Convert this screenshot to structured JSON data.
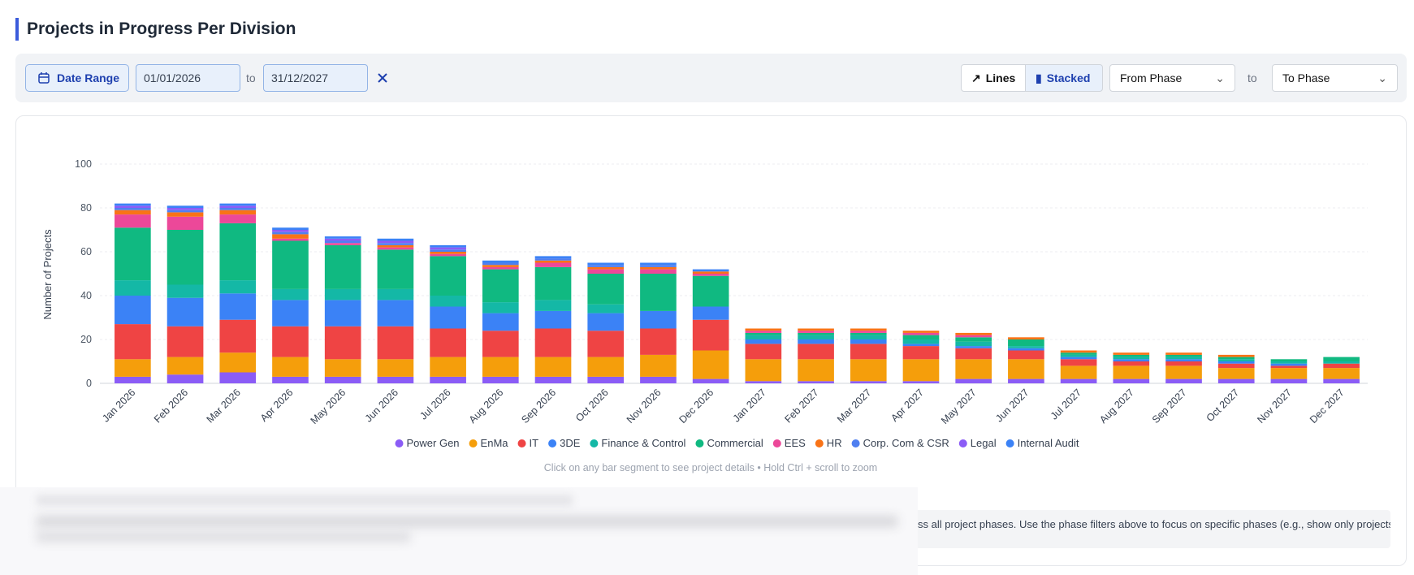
{
  "header": {
    "title": "Projects in Progress Per Division"
  },
  "toolbar": {
    "date_range_button": "Date Range",
    "start_date": "01/01/2026",
    "to_label": "to",
    "end_date": "31/12/2027",
    "view_lines": "Lines",
    "view_stacked": "Stacked",
    "from_phase": "From Phase",
    "phase_to_label": "to",
    "to_phase": "To Phase"
  },
  "chart_data": {
    "type": "bar",
    "stacked": true,
    "y_label": "Number of Projects",
    "categories": [
      "Jan 2026",
      "Feb 2026",
      "Mar 2026",
      "Apr 2026",
      "May 2026",
      "Jun 2026",
      "Jul 2026",
      "Aug 2026",
      "Sep 2026",
      "Oct 2026",
      "Nov 2026",
      "Dec 2026",
      "Jan 2027",
      "Feb 2027",
      "Mar 2027",
      "Apr 2027",
      "May 2027",
      "Jun 2027",
      "Jul 2027",
      "Aug 2027",
      "Sep 2027",
      "Oct 2027",
      "Nov 2027",
      "Dec 2027"
    ],
    "ylim": [
      0,
      100
    ],
    "yticks": [
      0,
      20,
      40,
      60,
      80,
      100
    ],
    "grid": true,
    "legend": "bottom",
    "series": [
      {
        "name": "Power Gen",
        "color": "#8b5cf6",
        "values": [
          3,
          4,
          5,
          3,
          3,
          3,
          3,
          3,
          3,
          3,
          3,
          2,
          1,
          1,
          1,
          1,
          2,
          2,
          2,
          2,
          2,
          2,
          2,
          2
        ]
      },
      {
        "name": "EnMa",
        "color": "#f59e0b",
        "values": [
          8,
          8,
          9,
          9,
          8,
          8,
          9,
          9,
          9,
          9,
          10,
          13,
          10,
          10,
          10,
          10,
          9,
          9,
          6,
          6,
          6,
          5,
          5,
          5
        ]
      },
      {
        "name": "IT",
        "color": "#ef4444",
        "values": [
          16,
          14,
          15,
          14,
          15,
          15,
          13,
          12,
          13,
          12,
          12,
          14,
          7,
          7,
          7,
          6,
          5,
          4,
          3,
          2,
          2,
          2,
          1,
          2
        ]
      },
      {
        "name": "3DE",
        "color": "#3b82f6",
        "values": [
          13,
          13,
          12,
          12,
          12,
          12,
          10,
          8,
          8,
          8,
          8,
          6,
          2,
          2,
          2,
          1,
          1,
          1,
          1,
          1,
          1,
          1,
          1,
          0
        ]
      },
      {
        "name": "Finance & Control",
        "color": "#14b8a6",
        "values": [
          7,
          6,
          6,
          5,
          5,
          5,
          5,
          5,
          5,
          4,
          0,
          0,
          2,
          2,
          2,
          2,
          2,
          1,
          1,
          1,
          1,
          1,
          1,
          1
        ]
      },
      {
        "name": "Commercial",
        "color": "#10b981",
        "values": [
          24,
          25,
          26,
          22,
          20,
          18,
          18,
          15,
          15,
          14,
          17,
          14,
          1,
          1,
          1,
          2,
          2,
          3,
          1,
          1,
          1,
          1,
          1,
          2
        ]
      },
      {
        "name": "EES",
        "color": "#ec4899",
        "values": [
          6,
          6,
          4,
          1,
          1,
          1,
          1,
          1,
          2,
          2,
          2,
          1,
          1,
          1,
          1,
          1,
          1,
          0,
          0,
          0,
          0,
          0,
          0,
          0
        ]
      },
      {
        "name": "HR",
        "color": "#f97316",
        "values": [
          2,
          2,
          2,
          2,
          0,
          1,
          1,
          1,
          1,
          1,
          1,
          1,
          1,
          1,
          1,
          1,
          1,
          1,
          1,
          1,
          1,
          1,
          0,
          0
        ]
      },
      {
        "name": "Corp. Com & CSR",
        "color": "#4f7ff0",
        "values": [
          1,
          1,
          1,
          1,
          1,
          1,
          1,
          1,
          1,
          1,
          1,
          0,
          0,
          0,
          0,
          0,
          0,
          0,
          0,
          0,
          0,
          0,
          0,
          0
        ]
      },
      {
        "name": "Legal",
        "color": "#8b5cf6",
        "values": [
          1,
          1,
          1,
          1,
          1,
          1,
          1,
          0,
          0,
          0,
          0,
          0,
          0,
          0,
          0,
          0,
          0,
          0,
          0,
          0,
          0,
          0,
          0,
          0
        ]
      },
      {
        "name": "Internal Audit",
        "color": "#3b82f6",
        "values": [
          1,
          1,
          1,
          1,
          1,
          1,
          1,
          1,
          1,
          1,
          1,
          1,
          0,
          0,
          0,
          0,
          0,
          0,
          0,
          0,
          0,
          0,
          0,
          0
        ]
      }
    ]
  },
  "hint": "Click on any bar segment to see project details • Hold Ctrl + scroll to zoom",
  "note": "ss all project phases. Use the phase filters above to focus on specific phases (e.g., show only projects in"
}
